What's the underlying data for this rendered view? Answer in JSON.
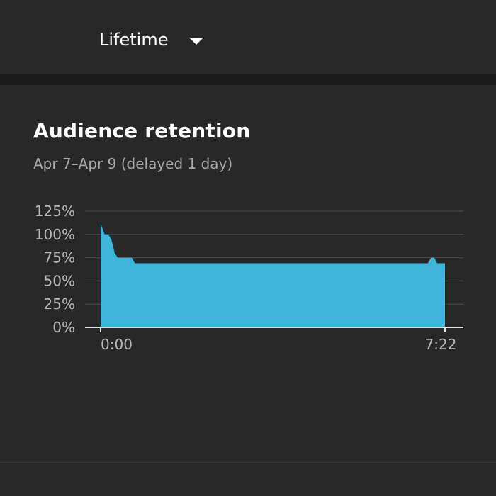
{
  "period_selector": {
    "label": "Lifetime",
    "icon": "caret-down-icon"
  },
  "card": {
    "title": "Audience retention",
    "subtitle": "Apr 7–Apr 9 (delayed 1 day)"
  },
  "colors": {
    "background": "#282828",
    "area_fill": "#41b4da",
    "gridline": "#4a4a4a",
    "axis": "#e0e0e0",
    "tick_text": "#b8b8b8"
  },
  "chart_data": {
    "type": "area",
    "title": "Audience retention",
    "xlabel": "",
    "ylabel": "",
    "x_tick_labels": [
      "0:00",
      "7:22"
    ],
    "y_tick_labels": [
      "0%",
      "25%",
      "50%",
      "75%",
      "100%",
      "125%"
    ],
    "y_ticks": [
      0,
      25,
      50,
      75,
      100,
      125
    ],
    "ylim": [
      0,
      125
    ],
    "xlim": [
      0,
      442
    ],
    "grid": true,
    "series": [
      {
        "values_x": [
          0,
          5,
          10,
          14,
          18,
          22,
          26,
          40,
          44,
          48,
          60,
          120,
          200,
          280,
          360,
          420,
          424,
          428,
          432,
          438,
          442
        ],
        "values_y": [
          112,
          100,
          100,
          94,
          80,
          75,
          75,
          75,
          69,
          69,
          69,
          69,
          69,
          69,
          69,
          69,
          75,
          75,
          69,
          69,
          69
        ]
      }
    ]
  }
}
